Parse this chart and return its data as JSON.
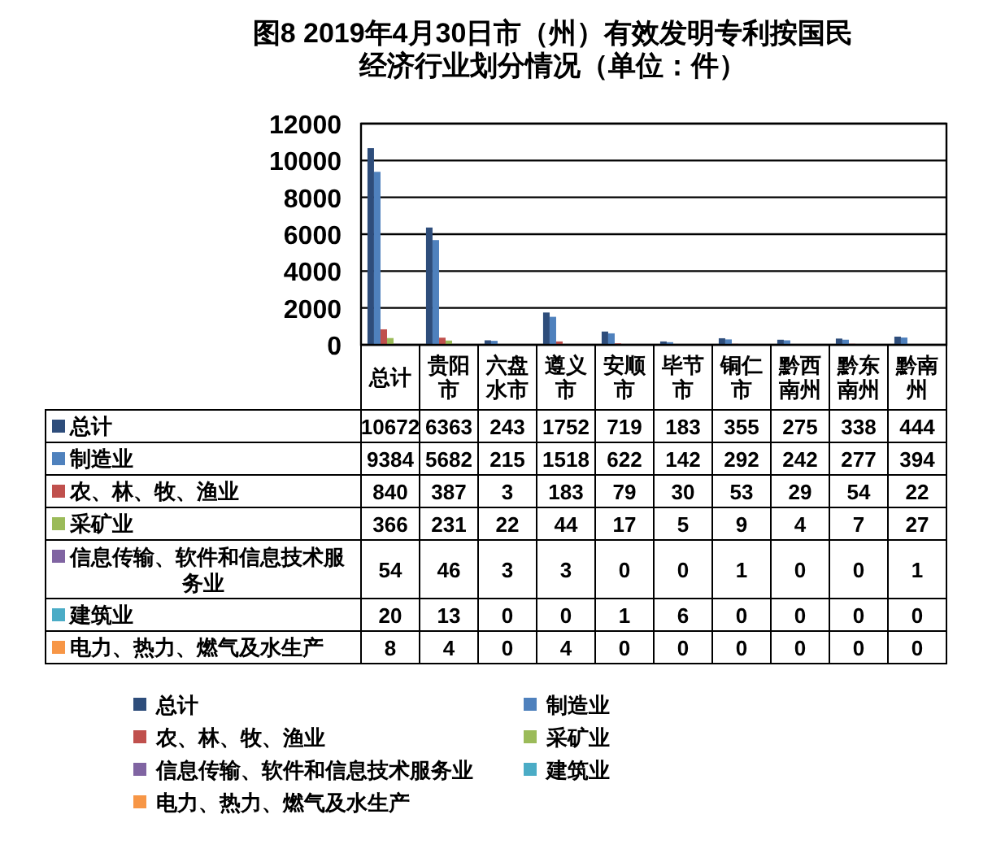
{
  "chart_data": {
    "type": "bar",
    "title": "图8  2019年4月30日市（州）有效发明专利按国民经济行业划分情况（单位：件）",
    "categories": [
      "总计",
      "贵阳市",
      "六盘水市",
      "遵义市",
      "安顺市",
      "毕节市",
      "铜仁市",
      "黔西南州",
      "黔东南州",
      "黔南州"
    ],
    "series": [
      {
        "name": "总计",
        "color": "#2e4d7b",
        "values": [
          10672,
          6363,
          243,
          1752,
          719,
          183,
          355,
          275,
          338,
          444
        ]
      },
      {
        "name": "制造业",
        "color": "#4f81bd",
        "values": [
          9384,
          5682,
          215,
          1518,
          622,
          142,
          292,
          242,
          277,
          394
        ]
      },
      {
        "name": "农、林、牧、渔业",
        "color": "#c0504d",
        "values": [
          840,
          387,
          3,
          183,
          79,
          30,
          53,
          29,
          54,
          22
        ]
      },
      {
        "name": "采矿业",
        "color": "#9bbb59",
        "values": [
          366,
          231,
          22,
          44,
          17,
          5,
          9,
          4,
          7,
          27
        ]
      },
      {
        "name": "信息传输、软件和信息技术服务业",
        "color": "#8064a2",
        "values": [
          54,
          46,
          3,
          3,
          0,
          0,
          1,
          0,
          0,
          1
        ]
      },
      {
        "name": "建筑业",
        "color": "#4bacc6",
        "values": [
          20,
          13,
          0,
          0,
          1,
          6,
          0,
          0,
          0,
          0
        ]
      },
      {
        "name": "电力、热力、燃气及水生产",
        "color": "#f79646",
        "values": [
          8,
          4,
          0,
          4,
          0,
          0,
          0,
          0,
          0,
          0
        ]
      }
    ],
    "ylim": [
      0,
      12000
    ],
    "yticks": [
      0,
      2000,
      4000,
      6000,
      8000,
      10000,
      12000
    ],
    "grid": "y",
    "data_labels": true,
    "legend": "bottom"
  }
}
